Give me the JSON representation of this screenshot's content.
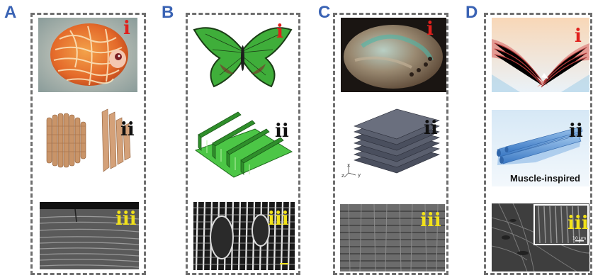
{
  "panels": [
    {
      "letter": "A",
      "labels": [
        "i",
        "ii",
        "iii"
      ]
    },
    {
      "letter": "B",
      "labels": [
        "i",
        "ii",
        "iii"
      ]
    },
    {
      "letter": "C",
      "labels": [
        "i",
        "ii",
        "iii"
      ]
    },
    {
      "letter": "D",
      "labels": [
        "i",
        "ii",
        "iii"
      ]
    }
  ],
  "captions": {
    "muscle": "Muscle-inspired"
  },
  "axis_labels": {
    "x": "x",
    "y": "y",
    "z": "z"
  },
  "scale_bar": "10 μm",
  "colors": {
    "letter": "#3a63b4",
    "frame": "#6f6f6f",
    "roman_i": "#e0201c",
    "roman_ii": "#111111",
    "roman_iii": "#f2e21a"
  }
}
